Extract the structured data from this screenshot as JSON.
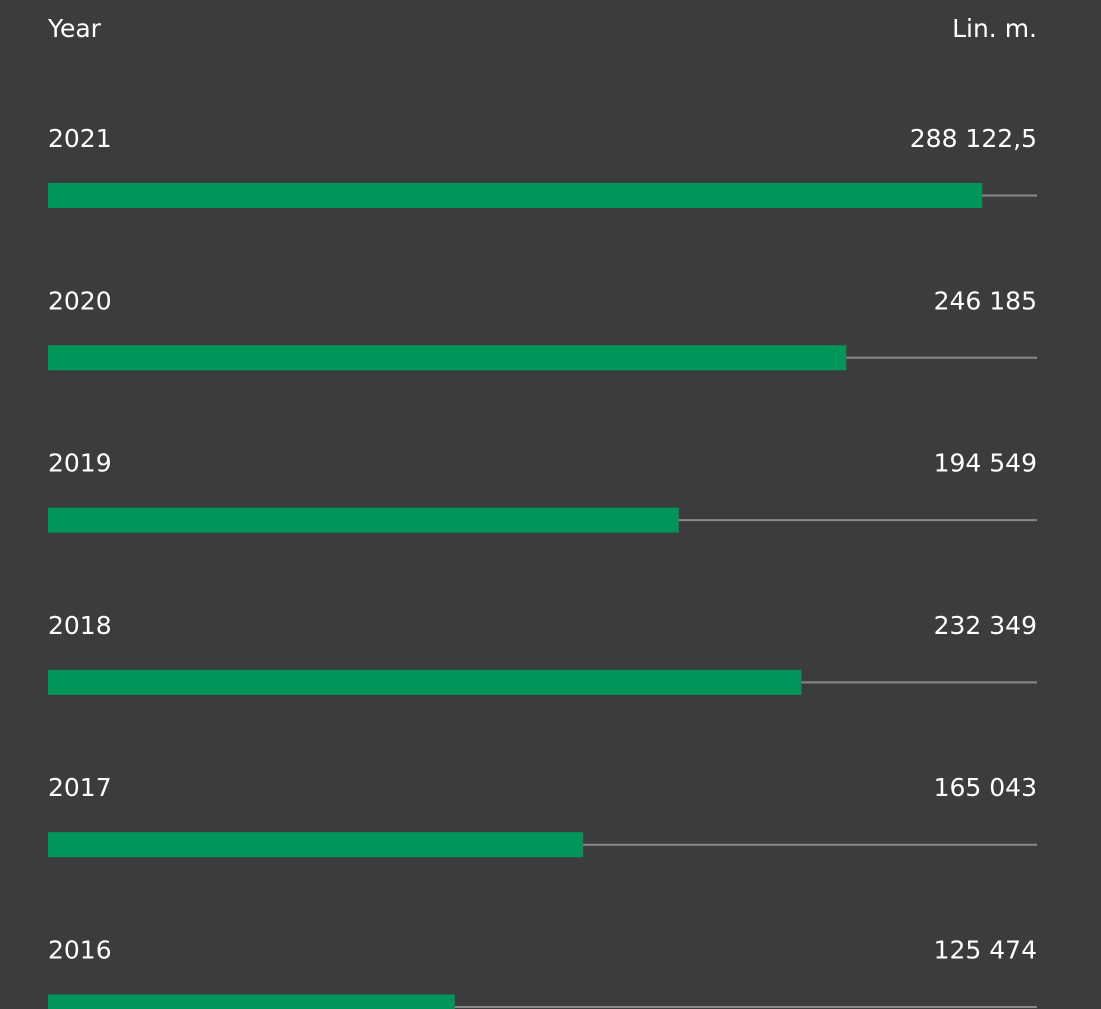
{
  "chart_data": {
    "type": "bar",
    "orientation": "horizontal",
    "category_label": "Year",
    "value_label": "Lin. m.",
    "categories": [
      "2021",
      "2020",
      "2019",
      "2018",
      "2017",
      "2016"
    ],
    "values": [
      288122.5,
      246185,
      194549,
      232349,
      165043,
      125474
    ],
    "value_labels": [
      "288 122,5",
      "246 185",
      "194 549",
      "232 349",
      "165 043",
      "125 474"
    ],
    "color": "#00965a",
    "track_color": "#8a8a8a",
    "xlim": [
      0,
      305000
    ]
  }
}
